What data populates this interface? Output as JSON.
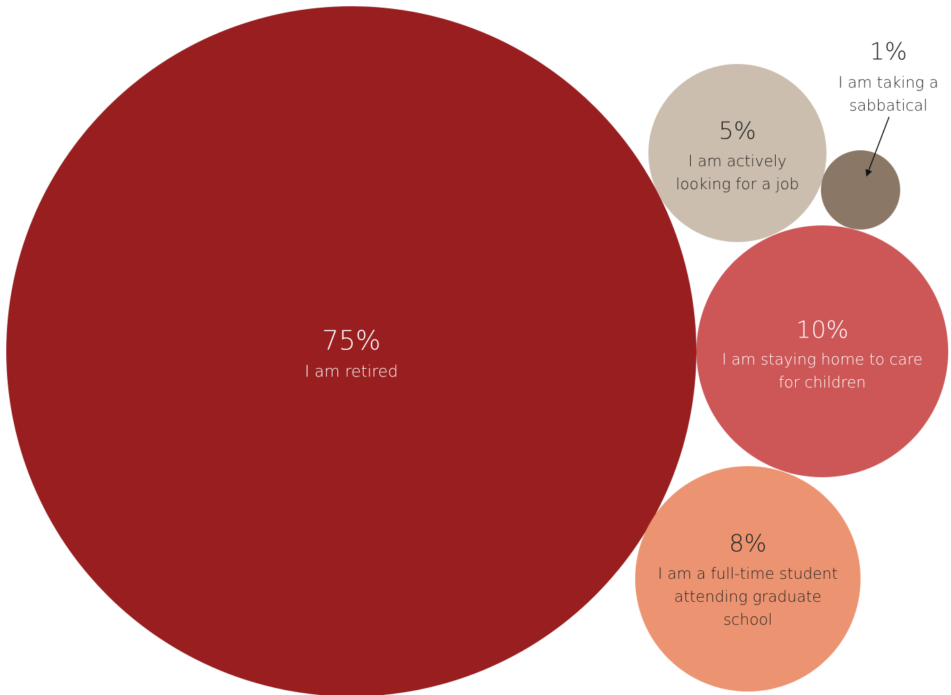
{
  "chart_data": {
    "type": "bubble",
    "title": "",
    "series": [
      {
        "value_label": "75%",
        "value": 75,
        "label_lines": [
          "I am retired"
        ],
        "color": "#981e1f",
        "text_color": "#ffffff"
      },
      {
        "value_label": "5%",
        "value": 5,
        "label_lines": [
          "I am actively",
          "looking for a job"
        ],
        "color": "#cbbeae",
        "text_color": "#222222"
      },
      {
        "value_label": "1%",
        "value": 1,
        "label_lines": [
          "I am taking a",
          "sabbatical"
        ],
        "color": "#8b7766",
        "text_color": "#222222"
      },
      {
        "value_label": "10%",
        "value": 10,
        "label_lines": [
          "I am staying home to care",
          "for children"
        ],
        "color": "#cd5656",
        "text_color": "#ffffff"
      },
      {
        "value_label": "8%",
        "value": 8,
        "label_lines": [
          "I am a full-time student",
          "attending graduate",
          "school"
        ],
        "color": "#ec9471",
        "text_color": "#222222"
      }
    ]
  }
}
